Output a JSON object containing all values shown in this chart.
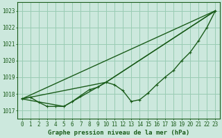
{
  "title": "Graphe pression niveau de la mer (hPa)",
  "background_color": "#cce8dd",
  "plot_bg_color": "#cce8dd",
  "grid_color": "#99ccb3",
  "line_color": "#1a5c1a",
  "xlim": [
    -0.5,
    23.5
  ],
  "ylim": [
    1016.5,
    1023.5
  ],
  "yticks": [
    1017,
    1018,
    1019,
    1020,
    1021,
    1022,
    1023
  ],
  "xticks": [
    0,
    1,
    2,
    3,
    4,
    5,
    6,
    7,
    8,
    9,
    10,
    11,
    12,
    13,
    14,
    15,
    16,
    17,
    18,
    19,
    20,
    21,
    22,
    23
  ],
  "main_line": {
    "x": [
      0,
      1,
      2,
      3,
      4,
      5,
      6,
      7,
      8,
      9,
      10,
      11,
      12,
      13,
      14,
      15,
      16,
      17,
      18,
      19,
      20,
      21,
      22,
      23
    ],
    "y": [
      1017.7,
      1017.8,
      1017.5,
      1017.25,
      1017.25,
      1017.25,
      1017.55,
      1017.9,
      1018.25,
      1018.4,
      1018.7,
      1018.55,
      1018.2,
      1017.55,
      1017.65,
      1018.05,
      1018.55,
      1019.0,
      1019.4,
      1020.0,
      1020.5,
      1021.2,
      1022.0,
      1023.0
    ]
  },
  "trend_lines": [
    {
      "x": [
        0,
        23
      ],
      "y": [
        1017.7,
        1023.0
      ]
    },
    {
      "x": [
        0,
        10,
        23
      ],
      "y": [
        1017.7,
        1018.7,
        1023.0
      ]
    },
    {
      "x": [
        0,
        5,
        10,
        23
      ],
      "y": [
        1017.7,
        1017.25,
        1018.7,
        1023.0
      ]
    }
  ],
  "tick_fontsize": 5.5,
  "label_fontsize": 6.5,
  "line_width": 1.0,
  "marker_size": 2.5
}
